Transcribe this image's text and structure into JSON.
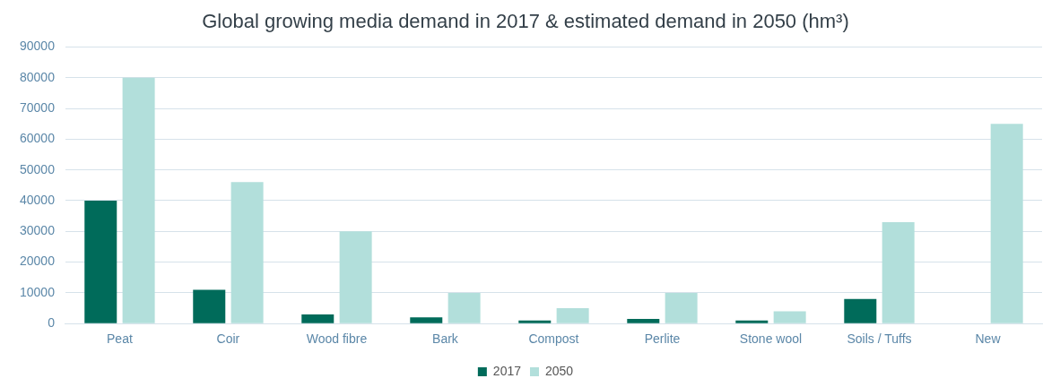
{
  "chart_data": {
    "type": "bar",
    "title": "Global growing media demand in 2017 & estimated demand in 2050 (hm³)",
    "categories": [
      "Peat",
      "Coir",
      "Wood fibre",
      "Bark",
      "Compost",
      "Perlite",
      "Stone wool",
      "Soils / Tuffs",
      "New"
    ],
    "series": [
      {
        "name": "2017",
        "color": "#006b5a",
        "values": [
          40000,
          11000,
          3000,
          2000,
          1000,
          1500,
          1000,
          8000,
          null
        ]
      },
      {
        "name": "2050",
        "color": "#b2dfdb",
        "values": [
          80000,
          46000,
          30000,
          10000,
          5000,
          10000,
          4000,
          33000,
          65000
        ]
      }
    ],
    "ylim": [
      0,
      90000
    ],
    "yticks": [
      0,
      10000,
      20000,
      30000,
      40000,
      50000,
      60000,
      70000,
      80000,
      90000
    ],
    "grid": "y",
    "legend": "bottom"
  }
}
